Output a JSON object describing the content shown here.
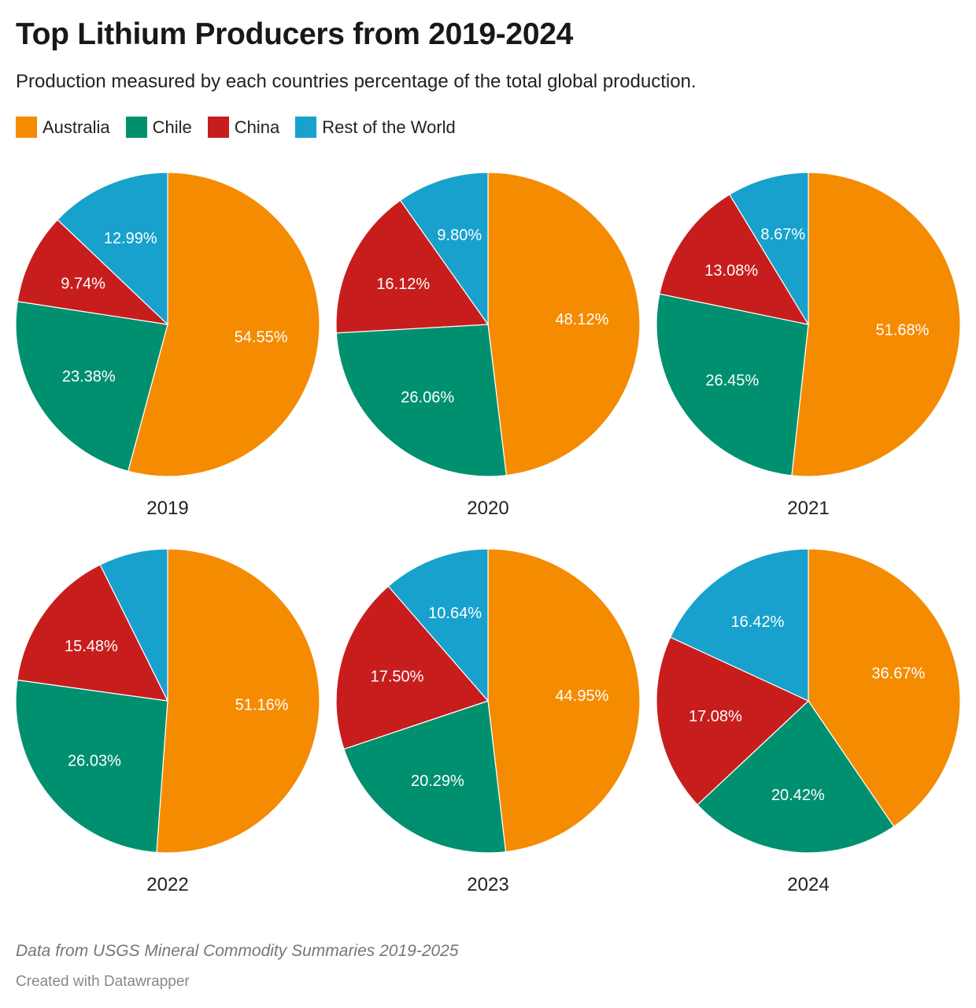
{
  "title": "Top Lithium Producers from 2019-2024",
  "subtitle": "Production measured by each countries percentage of the total global production.",
  "note": "Data from USGS Mineral Commodity Summaries 2019-2025",
  "credit": "Created with Datawrapper",
  "chart_data": {
    "type": "pie",
    "title": "Top Lithium Producers from 2019-2024",
    "legend": [
      {
        "name": "Australia",
        "color": "#f58b00"
      },
      {
        "name": "Chile",
        "color": "#00906f"
      },
      {
        "name": "China",
        "color": "#c71e1d"
      },
      {
        "name": "Rest of the World",
        "color": "#18a1cd"
      }
    ],
    "legend_placement": "top-left",
    "pies": [
      {
        "year": "2019",
        "values": [
          54.55,
          23.38,
          9.74,
          12.99
        ],
        "labels": [
          "54.55%",
          "23.38%",
          "9.74%",
          "12.99%"
        ]
      },
      {
        "year": "2020",
        "values": [
          48.12,
          26.06,
          16.12,
          9.8
        ],
        "labels": [
          "48.12%",
          "26.06%",
          "16.12%",
          "9.80%"
        ]
      },
      {
        "year": "2021",
        "values": [
          51.68,
          26.45,
          13.08,
          8.67
        ],
        "labels": [
          "51.68%",
          "26.45%",
          "13.08%",
          "8.67%"
        ]
      },
      {
        "year": "2022",
        "values": [
          51.16,
          26.03,
          15.48,
          7.33
        ],
        "labels": [
          "51.16%",
          "26.03%",
          "15.48%",
          ""
        ]
      },
      {
        "year": "2023",
        "values": [
          44.95,
          20.29,
          17.5,
          10.64
        ],
        "labels": [
          "44.95%",
          "20.29%",
          "17.50%",
          "10.64%"
        ]
      },
      {
        "year": "2024",
        "values": [
          36.67,
          20.42,
          17.08,
          16.42
        ],
        "labels": [
          "36.67%",
          "20.42%",
          "17.08%",
          "16.42%"
        ]
      }
    ]
  }
}
